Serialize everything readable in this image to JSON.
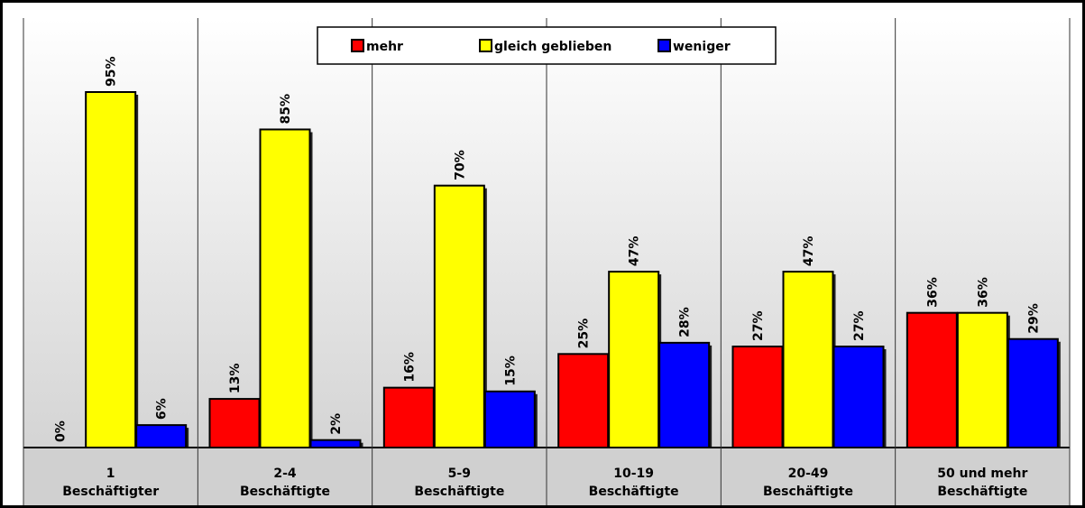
{
  "chart_data": {
    "type": "bar",
    "title": "",
    "xlabel": "",
    "ylabel": "",
    "ylim": [
      0,
      100
    ],
    "grid": false,
    "legend_position": "top-center",
    "categories": [
      [
        "1",
        "Beschäftigter"
      ],
      [
        "2-4",
        "Beschäftigte"
      ],
      [
        "5-9",
        "Beschäftigte"
      ],
      [
        "10-19",
        "Beschäftigte"
      ],
      [
        "20-49",
        "Beschäftigte"
      ],
      [
        "50 und mehr",
        "Beschäftigte"
      ]
    ],
    "series": [
      {
        "name": "mehr",
        "color": "#ff0000",
        "values": [
          0,
          13,
          16,
          25,
          27,
          36
        ],
        "labels": [
          "0%",
          "13%",
          "16%",
          "25%",
          "27%",
          "36%"
        ]
      },
      {
        "name": "gleich geblieben",
        "color": "#ffff00",
        "values": [
          95,
          85,
          70,
          47,
          47,
          36
        ],
        "labels": [
          "95%",
          "85%",
          "70%",
          "47%",
          "47%",
          "36%"
        ]
      },
      {
        "name": "weniger",
        "color": "#0000ff",
        "values": [
          6,
          2,
          15,
          28,
          27,
          29
        ],
        "labels": [
          "6%",
          "2%",
          "15%",
          "28%",
          "27%",
          "29%"
        ]
      }
    ]
  }
}
